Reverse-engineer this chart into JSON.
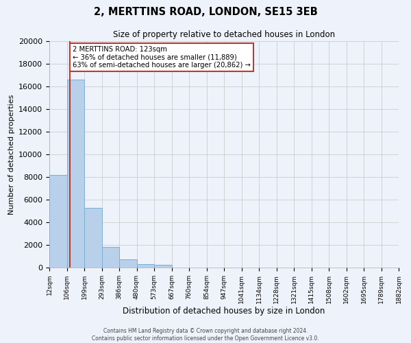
{
  "title": "2, MERTTINS ROAD, LONDON, SE15 3EB",
  "subtitle": "Size of property relative to detached houses in London",
  "xlabel": "Distribution of detached houses by size in London",
  "ylabel": "Number of detached properties",
  "bin_labels": [
    "12sqm",
    "106sqm",
    "199sqm",
    "293sqm",
    "386sqm",
    "480sqm",
    "573sqm",
    "667sqm",
    "760sqm",
    "854sqm",
    "947sqm",
    "1041sqm",
    "1134sqm",
    "1228sqm",
    "1321sqm",
    "1415sqm",
    "1508sqm",
    "1602sqm",
    "1695sqm",
    "1789sqm",
    "1882sqm"
  ],
  "bar_heights": [
    8200,
    16600,
    5300,
    1800,
    750,
    280,
    220,
    0,
    0,
    0,
    0,
    0,
    0,
    0,
    0,
    0,
    0,
    0,
    0,
    0
  ],
  "bar_color": "#b8d0ea",
  "bar_edge_color": "#7aafd4",
  "ylim": [
    0,
    20000
  ],
  "yticks": [
    0,
    2000,
    4000,
    6000,
    8000,
    10000,
    12000,
    14000,
    16000,
    18000,
    20000
  ],
  "property_size": 123,
  "property_label": "2 MERTTINS ROAD: 123sqm",
  "pct_smaller": 36,
  "pct_larger": 63,
  "n_smaller": 11889,
  "n_larger": 20862,
  "vline_color": "#c0392b",
  "annotation_box_edge": "#c0392b",
  "grid_color": "#cccccc",
  "bg_color": "#eef2fb",
  "footer_line1": "Contains HM Land Registry data © Crown copyright and database right 2024.",
  "footer_line2": "Contains public sector information licensed under the Open Government Licence v3.0."
}
